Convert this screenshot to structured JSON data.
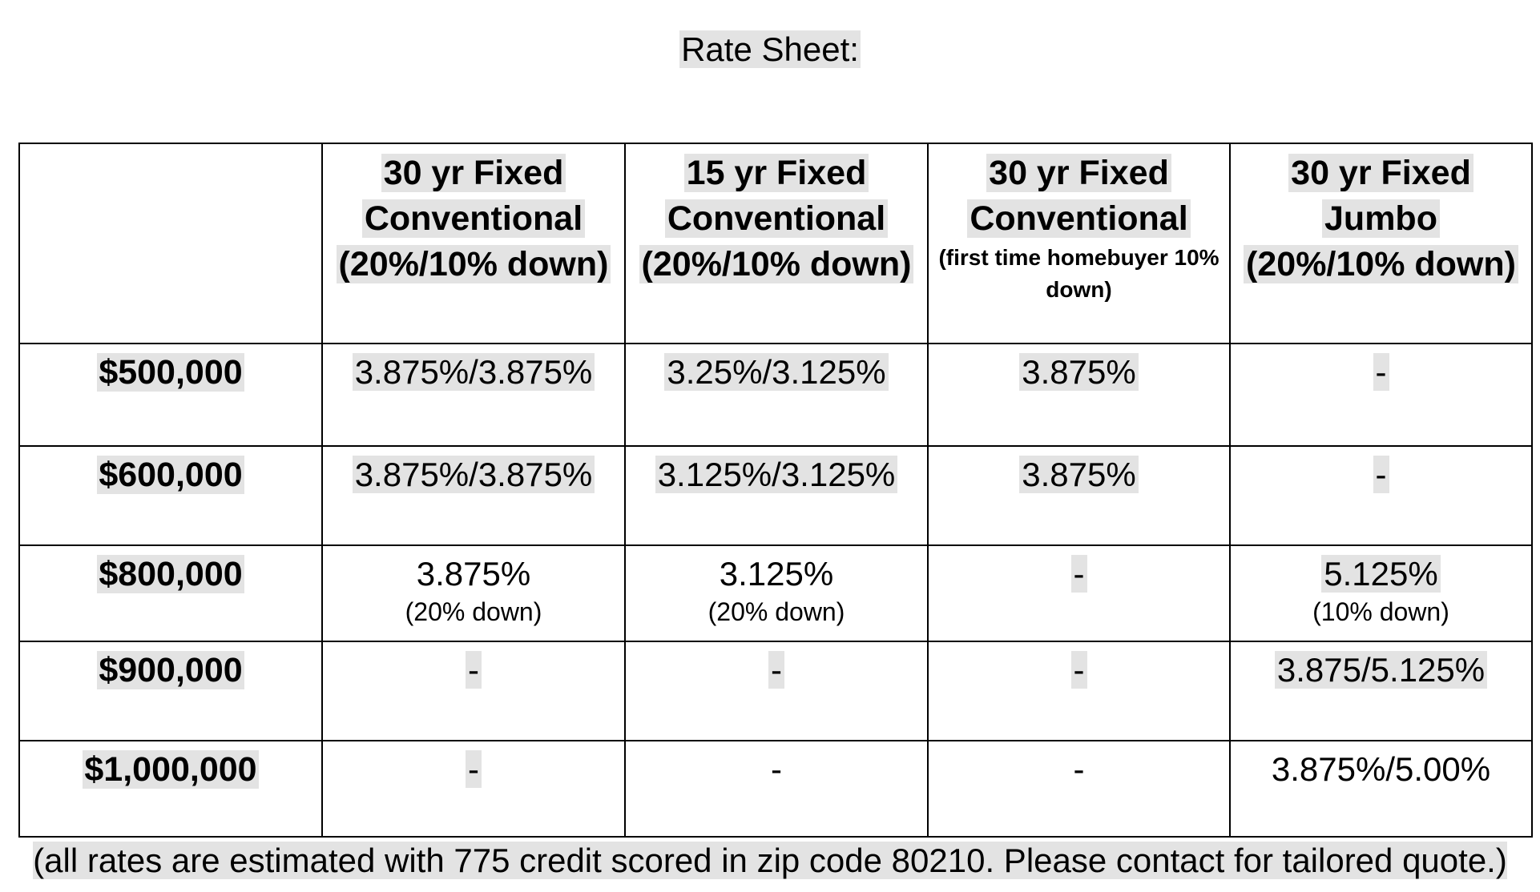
{
  "title": "Rate Sheet:",
  "columns": [
    {
      "line1": "30 yr Fixed",
      "line2": "Conventional",
      "line3": "(20%/10% down)",
      "small": ""
    },
    {
      "line1": "15 yr Fixed",
      "line2": "Conventional",
      "line3": "(20%/10% down)",
      "small": ""
    },
    {
      "line1": "30 yr Fixed",
      "line2": "Conventional",
      "line3": "",
      "small": "(first time homebuyer 10% down)"
    },
    {
      "line1": "30 yr Fixed",
      "line2": "Jumbo",
      "line3": "(20%/10% down)",
      "small": ""
    }
  ],
  "rows": [
    {
      "amount": "$500,000",
      "cells": [
        {
          "rate": "3.875%/3.875%",
          "note": ""
        },
        {
          "rate": "3.25%/3.125%",
          "note": ""
        },
        {
          "rate": "3.875%",
          "note": ""
        },
        {
          "rate": "-",
          "note": ""
        }
      ]
    },
    {
      "amount": "$600,000",
      "cells": [
        {
          "rate": "3.875%/3.875%",
          "note": ""
        },
        {
          "rate": "3.125%/3.125%",
          "note": ""
        },
        {
          "rate": "3.875%",
          "note": ""
        },
        {
          "rate": "-",
          "note": ""
        }
      ]
    },
    {
      "amount": "$800,000",
      "cells": [
        {
          "rate": "3.875%",
          "note": "(20% down)"
        },
        {
          "rate": "3.125%",
          "note": "(20% down)"
        },
        {
          "rate": "-",
          "note": ""
        },
        {
          "rate": "5.125%",
          "note": "(10% down)"
        }
      ]
    },
    {
      "amount": "$900,000",
      "cells": [
        {
          "rate": "-",
          "note": ""
        },
        {
          "rate": "-",
          "note": ""
        },
        {
          "rate": "-",
          "note": ""
        },
        {
          "rate": "3.875/5.125%",
          "note": ""
        }
      ]
    },
    {
      "amount": "$1,000,000",
      "cells": [
        {
          "rate": "-",
          "note": ""
        },
        {
          "rate": "-",
          "note": ""
        },
        {
          "rate": "-",
          "note": ""
        },
        {
          "rate": "3.875%/5.00%",
          "note": ""
        }
      ]
    }
  ],
  "footnote": "(all rates are estimated with 775 credit scored in zip code 80210. Please contact for tailored quote.)"
}
